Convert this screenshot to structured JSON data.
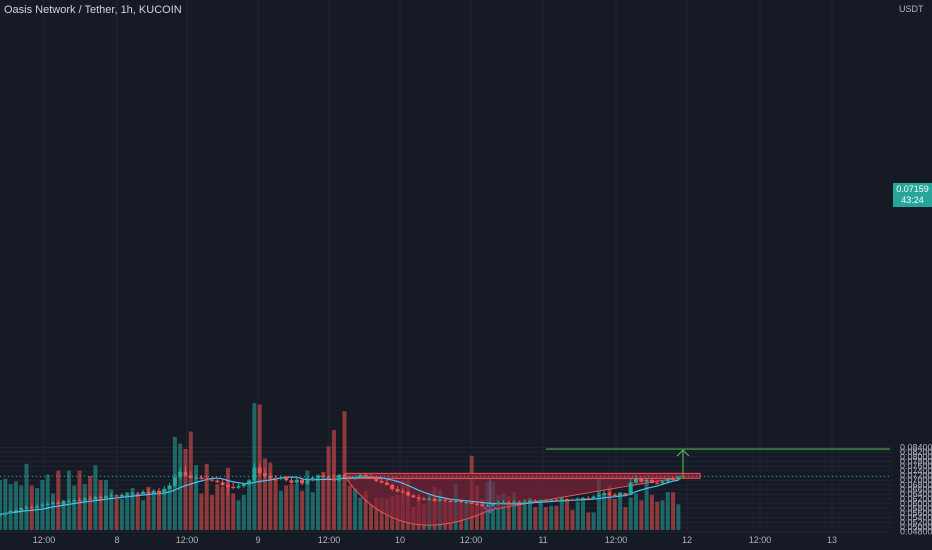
{
  "header": {
    "title": "Oasis Network / Tether, 1h, KUCOIN",
    "unit": "USDT"
  },
  "last": {
    "price": "0.07159",
    "countdown": "43:24"
  },
  "colors": {
    "background": "#161a25",
    "grid": "#1f2433",
    "up": "#26a69a",
    "down": "#ef5350",
    "ma": "#4fc3f7",
    "target": "#4caf50",
    "cup_fill": "#7a2338",
    "cup_line": "#ef5350",
    "depth_arrow": "#5c6bc0"
  },
  "chart_data": {
    "type": "candlestick",
    "y_ticks": [
      "0.04800",
      "0.05000",
      "0.05200",
      "0.05400",
      "0.05600",
      "0.05800",
      "0.06000",
      "0.06200",
      "0.06400",
      "0.06600",
      "0.06800",
      "0.07000",
      "0.07200",
      "0.07400",
      "0.07600",
      "0.07800",
      "0.08000",
      "0.08200",
      "0.08400"
    ],
    "x_ticks": [
      "12:00",
      "8",
      "12:00",
      "9",
      "12:00",
      "10",
      "12:00",
      "11",
      "12:00",
      "12",
      "12:00",
      "13"
    ],
    "ylim": [
      0.0475,
      0.0858
    ],
    "series": [
      {
        "name": "price",
        "open": [
          0.055,
          0.0554,
          0.056,
          0.0569,
          0.0571,
          0.058,
          0.0585,
          0.0582,
          0.0589,
          0.0596,
          0.0599,
          0.0605,
          0.0598,
          0.0609,
          0.061,
          0.0615,
          0.0613,
          0.0622,
          0.0618,
          0.0629,
          0.0623,
          0.0632,
          0.0635,
          0.063,
          0.0637,
          0.0639,
          0.0644,
          0.064,
          0.065,
          0.0643,
          0.0655,
          0.064,
          0.0663,
          0.0676,
          0.0712,
          0.0735,
          0.072,
          0.0708,
          0.0712,
          0.0705,
          0.0703,
          0.0698,
          0.0691,
          0.0679,
          0.0671,
          0.0668,
          0.0675,
          0.0686,
          0.0699,
          0.0754,
          0.073,
          0.0718,
          0.071,
          0.0706,
          0.0712,
          0.07,
          0.0689,
          0.0702,
          0.0686,
          0.0699,
          0.0711,
          0.0718,
          0.0716,
          0.0708,
          0.0699,
          0.0723,
          0.071,
          0.0705,
          0.0714,
          0.0723,
          0.0716,
          0.0715,
          0.0697,
          0.069,
          0.068,
          0.0662,
          0.0652,
          0.0649,
          0.0635,
          0.0627,
          0.0621,
          0.0618,
          0.0621,
          0.0611,
          0.0617,
          0.0612,
          0.0607,
          0.0612,
          0.0605,
          0.0606,
          0.0599,
          0.0597,
          0.0589,
          0.0592,
          0.0598,
          0.0604,
          0.0605,
          0.06,
          0.0606,
          0.0603,
          0.0606,
          0.0613,
          0.0608,
          0.0614,
          0.0612,
          0.0617,
          0.0613,
          0.0619,
          0.0616,
          0.0614,
          0.0622,
          0.0624,
          0.0619,
          0.063,
          0.0637,
          0.0645,
          0.0638,
          0.0632,
          0.0645,
          0.0637,
          0.069,
          0.0706,
          0.0694,
          0.0701,
          0.0688,
          0.0687,
          0.0694,
          0.0707,
          0.0701
        ],
        "high": [
          0.056,
          0.0564,
          0.0573,
          0.0576,
          0.0584,
          0.0592,
          0.0593,
          0.0596,
          0.0603,
          0.061,
          0.061,
          0.0616,
          0.0615,
          0.0622,
          0.0619,
          0.0626,
          0.0628,
          0.0633,
          0.0634,
          0.0636,
          0.0637,
          0.0645,
          0.064,
          0.0645,
          0.0647,
          0.065,
          0.0652,
          0.0658,
          0.0665,
          0.0663,
          0.0667,
          0.0675,
          0.069,
          0.0727,
          0.0754,
          0.0762,
          0.0737,
          0.0723,
          0.0722,
          0.072,
          0.0714,
          0.0712,
          0.0703,
          0.0696,
          0.0689,
          0.0687,
          0.0689,
          0.0706,
          0.0772,
          0.0772,
          0.0751,
          0.073,
          0.0722,
          0.0721,
          0.0718,
          0.0713,
          0.071,
          0.0711,
          0.0713,
          0.0716,
          0.0724,
          0.0728,
          0.0724,
          0.0726,
          0.0727,
          0.0729,
          0.072,
          0.0719,
          0.0731,
          0.0733,
          0.0727,
          0.0719,
          0.0708,
          0.0701,
          0.0686,
          0.0674,
          0.0664,
          0.0656,
          0.0642,
          0.064,
          0.0629,
          0.063,
          0.0625,
          0.0625,
          0.0623,
          0.0621,
          0.0619,
          0.0614,
          0.0612,
          0.0611,
          0.0608,
          0.0603,
          0.0599,
          0.0602,
          0.0613,
          0.0615,
          0.061,
          0.0616,
          0.0612,
          0.0617,
          0.0618,
          0.0619,
          0.0618,
          0.0618,
          0.062,
          0.0621,
          0.0625,
          0.0625,
          0.0622,
          0.0627,
          0.0628,
          0.0632,
          0.0636,
          0.0647,
          0.0656,
          0.0649,
          0.0646,
          0.0647,
          0.0646,
          0.0707,
          0.0721,
          0.0712,
          0.071,
          0.0708,
          0.0702,
          0.0699,
          0.071,
          0.0714,
          0.0716
        ],
        "low": [
          0.0545,
          0.0546,
          0.0557,
          0.0566,
          0.0565,
          0.0575,
          0.0574,
          0.0579,
          0.0583,
          0.0588,
          0.0594,
          0.0595,
          0.0596,
          0.0603,
          0.0604,
          0.061,
          0.0609,
          0.0616,
          0.0608,
          0.0618,
          0.062,
          0.0624,
          0.0628,
          0.0625,
          0.063,
          0.0634,
          0.0635,
          0.0636,
          0.064,
          0.0639,
          0.0637,
          0.0639,
          0.0658,
          0.067,
          0.0704,
          0.0716,
          0.0709,
          0.0699,
          0.0703,
          0.0697,
          0.0693,
          0.0688,
          0.0673,
          0.0635,
          0.0661,
          0.0662,
          0.0666,
          0.0676,
          0.0694,
          0.0719,
          0.0707,
          0.0704,
          0.0695,
          0.07,
          0.0694,
          0.0685,
          0.0683,
          0.0678,
          0.0681,
          0.0695,
          0.0705,
          0.0711,
          0.0705,
          0.0696,
          0.0694,
          0.0708,
          0.0699,
          0.0701,
          0.0708,
          0.0711,
          0.0705,
          0.0692,
          0.0686,
          0.0677,
          0.0653,
          0.0647,
          0.0642,
          0.063,
          0.0624,
          0.0611,
          0.0614,
          0.0612,
          0.0608,
          0.0609,
          0.0607,
          0.0604,
          0.0604,
          0.0601,
          0.0599,
          0.0597,
          0.0592,
          0.0587,
          0.0586,
          0.0587,
          0.0593,
          0.0598,
          0.0595,
          0.0596,
          0.06,
          0.0598,
          0.0604,
          0.0603,
          0.0604,
          0.0608,
          0.0609,
          0.0609,
          0.061,
          0.0612,
          0.061,
          0.0611,
          0.0616,
          0.0614,
          0.0617,
          0.0627,
          0.0634,
          0.0633,
          0.0631,
          0.0627,
          0.0635,
          0.0634,
          0.0681,
          0.069,
          0.069,
          0.0686,
          0.0683,
          0.0683,
          0.069,
          0.0698,
          0.0699
        ],
        "close": [
          0.0554,
          0.056,
          0.0569,
          0.0571,
          0.058,
          0.0585,
          0.0582,
          0.0589,
          0.0596,
          0.0599,
          0.0605,
          0.0598,
          0.0609,
          0.061,
          0.0615,
          0.0613,
          0.0622,
          0.0618,
          0.0629,
          0.0623,
          0.0632,
          0.0635,
          0.063,
          0.0637,
          0.0639,
          0.0644,
          0.064,
          0.065,
          0.0643,
          0.0655,
          0.064,
          0.0663,
          0.0676,
          0.0712,
          0.0735,
          0.072,
          0.0708,
          0.0712,
          0.0705,
          0.0703,
          0.0698,
          0.0691,
          0.0679,
          0.0671,
          0.0668,
          0.0675,
          0.0686,
          0.0699,
          0.0754,
          0.073,
          0.0718,
          0.071,
          0.0706,
          0.0712,
          0.07,
          0.0689,
          0.0702,
          0.0686,
          0.0699,
          0.0711,
          0.0718,
          0.0716,
          0.0708,
          0.0699,
          0.0723,
          0.071,
          0.0705,
          0.0714,
          0.0723,
          0.0716,
          0.0715,
          0.0697,
          0.069,
          0.068,
          0.0662,
          0.0652,
          0.0649,
          0.0635,
          0.0627,
          0.0621,
          0.0618,
          0.0621,
          0.0611,
          0.0617,
          0.0612,
          0.0607,
          0.0612,
          0.0605,
          0.0606,
          0.0599,
          0.0597,
          0.0589,
          0.0592,
          0.0598,
          0.0604,
          0.0605,
          0.06,
          0.0606,
          0.0603,
          0.0606,
          0.0613,
          0.0608,
          0.0614,
          0.0612,
          0.0617,
          0.0613,
          0.0619,
          0.0616,
          0.0614,
          0.0622,
          0.0624,
          0.0619,
          0.063,
          0.0637,
          0.0645,
          0.0638,
          0.0632,
          0.0645,
          0.0637,
          0.069,
          0.0706,
          0.0694,
          0.0701,
          0.0688,
          0.0687,
          0.0694,
          0.0707,
          0.0701,
          0.0716
        ],
        "volume": [
          0.37,
          0.38,
          0.34,
          0.36,
          0.33,
          0.49,
          0.33,
          0.31,
          0.37,
          0.41,
          0.27,
          0.44,
          0.22,
          0.44,
          0.33,
          0.44,
          0.34,
          0.4,
          0.48,
          0.37,
          0.37,
          0.3,
          0.23,
          0.23,
          0.28,
          0.31,
          0.27,
          0.22,
          0.32,
          0.28,
          0.27,
          0.3,
          0.33,
          0.69,
          0.64,
          0.6,
          0.73,
          0.48,
          0.27,
          0.49,
          0.26,
          0.34,
          0.32,
          0.46,
          0.27,
          0.22,
          0.26,
          0.35,
          0.94,
          0.93,
          0.53,
          0.5,
          0.38,
          0.29,
          0.33,
          0.34,
          0.34,
          0.29,
          0.44,
          0.28,
          0.41,
          0.43,
          0.62,
          0.74,
          0.38,
          0.88,
          0.33,
          0.31,
          0.24,
          0.29,
          0.19,
          0.24,
          0.24,
          0.23,
          0.25,
          0.26,
          0.37,
          0.38,
          0.17,
          0.23,
          0.19,
          0.27,
          0.32,
          0.3,
          0.21,
          0.23,
          0.34,
          0.19,
          0.21,
          0.55,
          0.33,
          0.23,
          0.36,
          0.36,
          0.26,
          0.27,
          0.25,
          0.28,
          0.22,
          0.23,
          0.24,
          0.17,
          0.22,
          0.17,
          0.18,
          0.18,
          0.24,
          0.23,
          0.15,
          0.21,
          0.24,
          0.13,
          0.13,
          0.38,
          0.27,
          0.33,
          0.23,
          0.28,
          0.17,
          0.24,
          0.27,
          0.22,
          0.42,
          0.26,
          0.21,
          0.22,
          0.28,
          0.28,
          0.19
        ]
      },
      {
        "name": "moving-average",
        "derived_from": "close"
      }
    ],
    "annotations": {
      "resistance_level": 0.0708,
      "cup_bottom": 0.0586,
      "target_level": 0.0833
    }
  }
}
